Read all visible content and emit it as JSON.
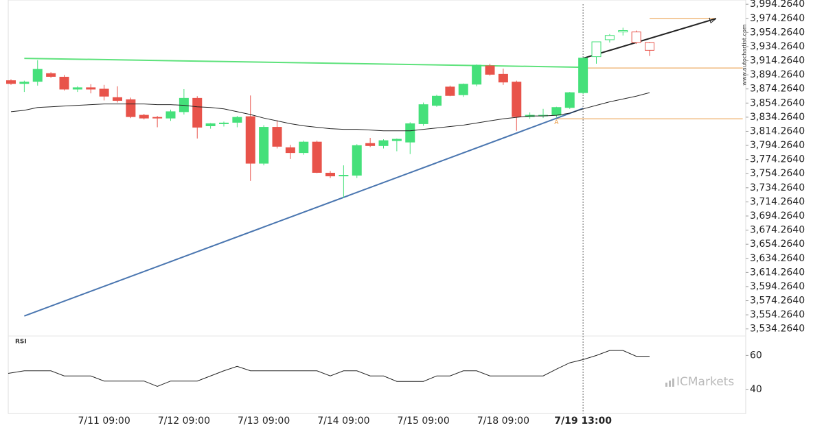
{
  "chart_data": [
    {
      "type": "candlestick",
      "categories": [
        null,
        null,
        null,
        null,
        null,
        null,
        null,
        "7/11 09:00",
        null,
        null,
        null,
        null,
        null,
        "7/12 09:00",
        null,
        null,
        null,
        null,
        null,
        "7/13 09:00",
        null,
        null,
        null,
        null,
        null,
        "7/14 09:00",
        null,
        null,
        null,
        null,
        null,
        "7/15 09:00",
        null,
        null,
        null,
        null,
        null,
        "7/18 09:00",
        null,
        null,
        null,
        null,
        null,
        "7/19 13:00",
        null,
        null,
        null,
        null,
        null
      ],
      "open": [
        3886,
        3882,
        3885,
        3896,
        3891,
        3874,
        3876,
        3874,
        3862,
        3859,
        3837,
        3834,
        3833,
        3842,
        3861,
        3822,
        3825,
        3827,
        3835,
        3769,
        3820,
        3791,
        3784,
        3799,
        3755,
        3751,
        3752,
        3797,
        3794,
        3801,
        3799,
        3825,
        3851,
        3877,
        3866,
        3881,
        3907,
        3895,
        3884,
        3835,
        3837,
        3837,
        3848,
        3869,
        3920,
        3944,
        3955,
        3955,
        3940
      ],
      "high": [
        3888,
        3886,
        3915,
        3898,
        3894,
        3878,
        3881,
        3880,
        3878,
        3862,
        3839,
        3836,
        3845,
        3874,
        3864,
        3826,
        3828,
        3836,
        3865,
        3823,
        3830,
        3795,
        3801,
        3801,
        3758,
        3766,
        3796,
        3805,
        3803,
        3804,
        3827,
        3855,
        3866,
        3879,
        3882,
        3909,
        3910,
        3903,
        3886,
        3841,
        3846,
        3849,
        3870,
        3918,
        3941,
        3952,
        3961,
        3957,
        3941
      ],
      "low": [
        3880,
        3870,
        3879,
        3890,
        3872,
        3870,
        3868,
        3858,
        3855,
        3833,
        3831,
        3820,
        3829,
        3838,
        3804,
        3818,
        3821,
        3820,
        3744,
        3766,
        3790,
        3775,
        3781,
        3755,
        3748,
        3720,
        3748,
        3792,
        3790,
        3786,
        3782,
        3822,
        3849,
        3864,
        3863,
        3878,
        3893,
        3880,
        3815,
        3832,
        3833,
        3834,
        3846,
        3867,
        3910,
        3940,
        3950,
        3938,
        3921
      ],
      "close": [
        3882,
        3884,
        3902,
        3892,
        3874,
        3876,
        3874,
        3864,
        3858,
        3835,
        3833,
        3833,
        3842,
        3861,
        3820,
        3825,
        3826,
        3834,
        3769,
        3820,
        3793,
        3784,
        3799,
        3756,
        3751,
        3752,
        3794,
        3794,
        3801,
        3803,
        3825,
        3852,
        3864,
        3865,
        3881,
        3908,
        3895,
        3884,
        3835,
        3837,
        3837,
        3848,
        3869,
        3918,
        3941,
        3950,
        3957,
        3940,
        3929
      ],
      "up_color": "#45e07a",
      "down_color": "#e8534a",
      "moving_average": {
        "color": "#222222",
        "values": [
          3842,
          3844,
          3848,
          3849,
          3850,
          3851,
          3852,
          3853,
          3853,
          3853,
          3853,
          3852,
          3852,
          3851,
          3849,
          3848,
          3846,
          3842,
          3838,
          3833,
          3829,
          3825,
          3822,
          3820,
          3818,
          3817,
          3817,
          3816,
          3815,
          3815,
          3815,
          3817,
          3819,
          3821,
          3823,
          3826,
          3829,
          3832,
          3834,
          3836,
          3836,
          3837,
          3840,
          3846,
          3851,
          3856,
          3860,
          3864,
          3869
        ]
      },
      "trend_lines": [
        {
          "x": [
            1,
            43
          ],
          "y": [
            3917.6,
            3905
          ],
          "color": "#5de27b"
        },
        {
          "x": [
            1,
            43
          ],
          "y": [
            3552.6,
            3846.7
          ],
          "color": "#4a76b0"
        },
        {
          "x": [
            43,
            53
          ],
          "y": [
            3917.6,
            3974
          ],
          "color": "#222222"
        }
      ],
      "levels": [
        {
          "x": [
            43,
            55
          ],
          "y": 3904,
          "color": "#e8953a"
        },
        {
          "x": [
            41,
            55
          ],
          "y": 3832,
          "color": "#e8953a"
        },
        {
          "x": [
            48,
            53
          ],
          "y": 3974,
          "color": "#e8953a"
        }
      ],
      "point_label": {
        "text": "A",
        "x": 41,
        "y": 3827
      },
      "vline_x": 43,
      "ylim": [
        3524.264,
        4000.264
      ],
      "yticks": [
        {
          "value": 3994.264,
          "label": "3,994.2640"
        },
        {
          "value": 3974.264,
          "label": "3,974.2640"
        },
        {
          "value": 3954.264,
          "label": "3,954.2640"
        },
        {
          "value": 3934.264,
          "label": "3,934.2640"
        },
        {
          "value": 3914.264,
          "label": "3,914.2640"
        },
        {
          "value": 3894.264,
          "label": "3,894.2640"
        },
        {
          "value": 3874.264,
          "label": "3,874.2640"
        },
        {
          "value": 3854.264,
          "label": "3,854.2640"
        },
        {
          "value": 3834.264,
          "label": "3,834.2640"
        },
        {
          "value": 3814.264,
          "label": "3,814.2640"
        },
        {
          "value": 3794.264,
          "label": "3,794.2640"
        },
        {
          "value": 3774.264,
          "label": "3,774.2640"
        },
        {
          "value": 3754.264,
          "label": "3,754.2640"
        },
        {
          "value": 3734.264,
          "label": "3,734.2640"
        },
        {
          "value": 3714.264,
          "label": "3,714.2640"
        },
        {
          "value": 3694.264,
          "label": "3,694.2640"
        },
        {
          "value": 3674.264,
          "label": "3,674.2640"
        },
        {
          "value": 3654.264,
          "label": "3,654.2640"
        },
        {
          "value": 3634.264,
          "label": "3,634.2640"
        },
        {
          "value": 3614.264,
          "label": "3,614.2640"
        },
        {
          "value": 3594.264,
          "label": "3,594.2640"
        },
        {
          "value": 3574.264,
          "label": "3,574.2640"
        },
        {
          "value": 3554.264,
          "label": "3,554.2640"
        },
        {
          "value": 3534.264,
          "label": "3,534.2640"
        }
      ],
      "watermark": "www.autochartist.com",
      "logo": "ICMarkets"
    },
    {
      "type": "line",
      "title": "RSI",
      "series": [
        {
          "color": "#222222",
          "values": [
            49.5,
            51,
            51,
            51,
            48,
            48,
            48,
            45,
            45,
            45,
            45,
            41.9,
            45,
            45,
            45,
            48,
            51,
            53.6,
            51,
            51,
            51,
            51,
            51,
            51,
            48,
            51,
            51,
            48,
            48,
            44.8,
            44.8,
            44.8,
            48,
            48,
            51,
            51,
            48,
            48,
            48,
            48,
            48,
            52,
            55.7,
            57.6,
            60,
            62.9,
            62.9,
            59.5,
            59.5
          ]
        }
      ],
      "ylim": [
        26,
        71.4
      ],
      "yticks": [
        40,
        60
      ]
    }
  ]
}
